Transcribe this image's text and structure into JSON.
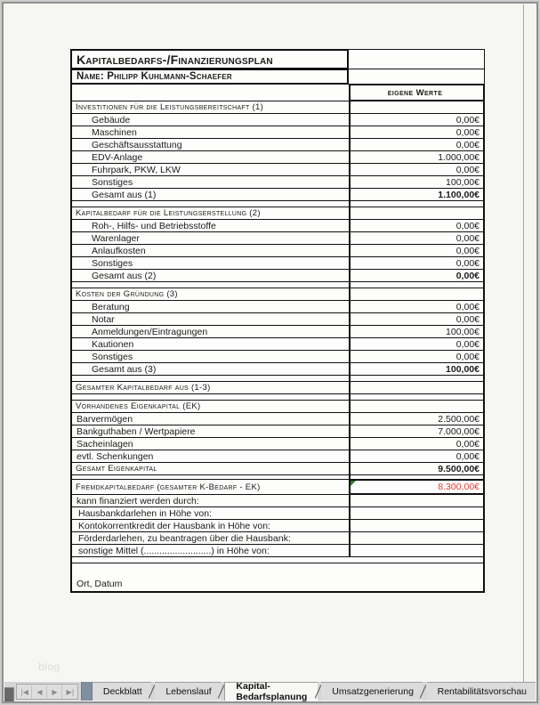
{
  "page": {
    "watermark": "blog"
  },
  "table": {
    "title": "Kapitalbedarfs-/Finanzierungsplan",
    "name_row": "Name: Philipp Kuhlmann-Schaefer",
    "value_header": "eigene Werte",
    "footer_label": "Ort, Datum",
    "colors": {
      "negative_value": "#e53935",
      "note_indicator": "#2e7d32"
    },
    "rows": [
      {
        "label": "Investitionen für die Leistungsbereitschaft (1)",
        "value": ""
      },
      {
        "label": "Gebäude",
        "value": "0,00€"
      },
      {
        "label": "Maschinen",
        "value": "0,00€"
      },
      {
        "label": "Geschäftsausstattung",
        "value": "0,00€"
      },
      {
        "label": "EDV-Anlage",
        "value": "1.000,00€"
      },
      {
        "label": "Fuhrpark, PKW, LKW",
        "value": "0,00€"
      },
      {
        "label": "Sonstiges",
        "value": "100,00€"
      },
      {
        "label": "Gesamt aus (1)",
        "value": "1.100,00€"
      },
      {
        "label": "Kapitalbedarf für die Leistungserstellung (2)",
        "value": ""
      },
      {
        "label": "Roh-, Hilfs- und Betriebsstoffe",
        "value": "0,00€"
      },
      {
        "label": "Warenlager",
        "value": "0,00€"
      },
      {
        "label": "Anlaufkosten",
        "value": "0,00€"
      },
      {
        "label": "Sonstiges",
        "value": "0,00€"
      },
      {
        "label": "Gesamt aus (2)",
        "value": "0,00€"
      },
      {
        "label": "Kosten der Gründung (3)",
        "value": ""
      },
      {
        "label": "Beratung",
        "value": "0,00€"
      },
      {
        "label": "Notar",
        "value": "0,00€"
      },
      {
        "label": "Anmeldungen/Eintragungen",
        "value": "100,00€"
      },
      {
        "label": "Kautionen",
        "value": "0,00€"
      },
      {
        "label": "Sonstiges",
        "value": "0,00€"
      },
      {
        "label": "Gesamt aus (3)",
        "value": "100,00€"
      },
      {
        "label": "Gesamter Kapitalbedarf aus (1-3)",
        "value": ""
      },
      {
        "label": "Vorhandenes Eigenkapital (EK)",
        "value": ""
      },
      {
        "label": "Barvermögen",
        "value": "2.500,00€"
      },
      {
        "label": "Bankguthaben / Wertpapiere",
        "value": "7.000,00€"
      },
      {
        "label": "Sacheinlagen",
        "value": "0,00€"
      },
      {
        "label": "evtl. Schenkungen",
        "value": "0,00€"
      },
      {
        "label": "Gesamt Eigenkapital",
        "value": "9.500,00€"
      },
      {
        "label": "Fremdkapitalbedarf (gesamter K-Bedarf - EK)",
        "value": "8.300,00€"
      },
      {
        "label": "kann finanziert werden durch:",
        "value": ""
      },
      {
        "label": "Hausbankdarlehen in Höhe von:",
        "value": ""
      },
      {
        "label": "Kontokorrentkredit der Hausbank in Höhe von:",
        "value": ""
      },
      {
        "label": "Förderdarlehen, zu beantragen über die Hausbank:",
        "value": ""
      },
      {
        "label": "sonstige Mittel (..........................) in Höhe von:",
        "value": ""
      }
    ]
  },
  "tabbar": {
    "nav": {
      "first": "|◀",
      "prev": "◀",
      "next": "▶",
      "last": "▶|"
    },
    "tabs": [
      {
        "label": "Deckblatt",
        "active": false
      },
      {
        "label": "Lebenslauf",
        "active": false
      },
      {
        "label": "Kapital-Bedarfsplanung",
        "active": true
      },
      {
        "label": "Umsatzgenerierung",
        "active": false
      },
      {
        "label": "Rentabilitätsvorschau",
        "active": false
      }
    ]
  }
}
